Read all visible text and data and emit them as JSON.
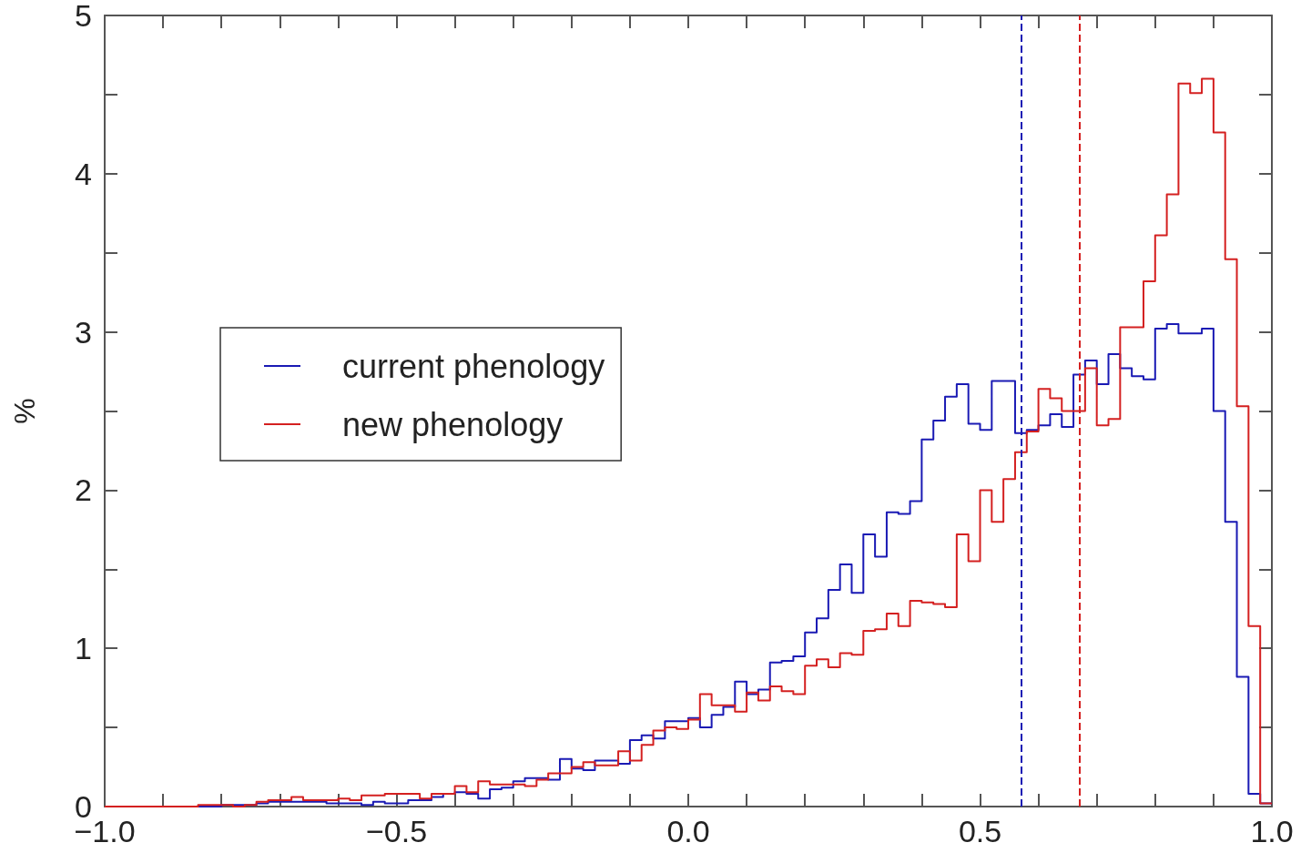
{
  "chart_data": {
    "type": "histogram",
    "ylabel": "%",
    "bins": [
      -1.0,
      -0.98,
      -0.96,
      -0.94,
      -0.92,
      -0.9,
      -0.88,
      -0.86,
      -0.84,
      -0.82,
      -0.8,
      -0.78,
      -0.76,
      -0.74,
      -0.72,
      -0.7,
      -0.68,
      -0.66,
      -0.64,
      -0.62,
      -0.6,
      -0.58,
      -0.56,
      -0.54,
      -0.52,
      -0.5,
      -0.48,
      -0.46,
      -0.44,
      -0.42,
      -0.4,
      -0.38,
      -0.36,
      -0.34,
      -0.32,
      -0.3,
      -0.28,
      -0.26,
      -0.24,
      -0.22,
      -0.2,
      -0.18,
      -0.16,
      -0.14,
      -0.12,
      -0.1,
      -0.08,
      -0.06,
      -0.04,
      -0.02,
      0.0,
      0.02,
      0.04,
      0.06,
      0.08,
      0.1,
      0.12,
      0.14,
      0.16,
      0.18,
      0.2,
      0.22,
      0.24,
      0.26,
      0.28,
      0.3,
      0.32,
      0.34,
      0.36,
      0.38,
      0.4,
      0.42,
      0.44,
      0.46,
      0.48,
      0.5,
      0.52,
      0.54,
      0.56,
      0.58,
      0.6,
      0.62,
      0.64,
      0.66,
      0.68,
      0.7,
      0.72,
      0.74,
      0.76,
      0.78,
      0.8,
      0.82,
      0.84,
      0.86,
      0.88,
      0.9,
      0.92,
      0.94,
      0.96,
      0.98,
      1.0
    ],
    "series": [
      {
        "name": "current phenology",
        "color": "#1a1ab4",
        "values": [
          0,
          0,
          0,
          0,
          0,
          0,
          0,
          0,
          0,
          0,
          0.01,
          0.01,
          0.01,
          0.02,
          0.03,
          0.03,
          0.03,
          0.03,
          0.03,
          0.02,
          0.02,
          0.02,
          0.01,
          0.03,
          0.02,
          0.02,
          0.04,
          0.04,
          0.06,
          0.08,
          0.09,
          0.08,
          0.05,
          0.11,
          0.12,
          0.16,
          0.18,
          0.18,
          0.17,
          0.3,
          0.24,
          0.23,
          0.29,
          0.29,
          0.27,
          0.42,
          0.45,
          0.43,
          0.54,
          0.54,
          0.56,
          0.5,
          0.58,
          0.63,
          0.79,
          0.71,
          0.74,
          0.91,
          0.92,
          0.95,
          1.1,
          1.19,
          1.37,
          1.53,
          1.35,
          1.72,
          1.58,
          1.86,
          1.85,
          1.93,
          2.32,
          2.44,
          2.59,
          2.67,
          2.42,
          2.38,
          2.69,
          2.69,
          2.36,
          2.38,
          2.41,
          2.48,
          2.4,
          2.73,
          2.82,
          2.67,
          2.86,
          2.77,
          2.72,
          2.7,
          3.02,
          3.05,
          2.99,
          2.99,
          3.02,
          2.5,
          1.8,
          0.82,
          0.08,
          0.02
        ]
      },
      {
        "name": "new phenology",
        "color": "#d42020",
        "values": [
          0,
          0,
          0,
          0,
          0,
          0,
          0,
          0,
          0.01,
          0.01,
          0.01,
          0,
          0.01,
          0.03,
          0.04,
          0.04,
          0.06,
          0.04,
          0.04,
          0.04,
          0.05,
          0.04,
          0.07,
          0.07,
          0.08,
          0.08,
          0.08,
          0.05,
          0.08,
          0.08,
          0.13,
          0.09,
          0.16,
          0.14,
          0.14,
          0.14,
          0.13,
          0.17,
          0.21,
          0.21,
          0.25,
          0.28,
          0.26,
          0.26,
          0.35,
          0.29,
          0.39,
          0.48,
          0.5,
          0.49,
          0.55,
          0.71,
          0.64,
          0.64,
          0.6,
          0.72,
          0.67,
          0.76,
          0.73,
          0.71,
          0.89,
          0.93,
          0.88,
          0.97,
          0.96,
          1.11,
          1.12,
          1.22,
          1.14,
          1.3,
          1.29,
          1.28,
          1.26,
          1.72,
          1.55,
          2.0,
          1.8,
          2.07,
          2.24,
          2.37,
          2.64,
          2.58,
          2.5,
          2.5,
          2.77,
          2.41,
          2.45,
          3.03,
          3.03,
          3.32,
          3.61,
          3.87,
          4.57,
          4.51,
          4.6,
          4.26,
          3.46,
          2.53,
          1.14,
          0.02
        ]
      }
    ],
    "xlim": [
      -1,
      1
    ],
    "xticks": [
      {
        "value": -1,
        "label": "−1.0"
      },
      {
        "value": -0.9,
        "label": null
      },
      {
        "value": -0.8,
        "label": null
      },
      {
        "value": -0.7,
        "label": null
      },
      {
        "value": -0.6,
        "label": null
      },
      {
        "value": -0.5,
        "label": "−0.5"
      },
      {
        "value": -0.4,
        "label": null
      },
      {
        "value": -0.3,
        "label": null
      },
      {
        "value": -0.2,
        "label": null
      },
      {
        "value": -0.1,
        "label": null
      },
      {
        "value": 0,
        "label": "0.0"
      },
      {
        "value": 0.1,
        "label": null
      },
      {
        "value": 0.2,
        "label": null
      },
      {
        "value": 0.3,
        "label": null
      },
      {
        "value": 0.4,
        "label": null
      },
      {
        "value": 0.5,
        "label": "0.5"
      },
      {
        "value": 0.6,
        "label": null
      },
      {
        "value": 0.7,
        "label": null
      },
      {
        "value": 0.8,
        "label": null
      },
      {
        "value": 0.9,
        "label": null
      },
      {
        "value": 1,
        "label": "1.0"
      }
    ],
    "ylim": [
      0,
      5
    ],
    "yticks": [
      0,
      {
        "value": 0.5,
        "label": null
      },
      1,
      {
        "value": 1.5,
        "label": null
      },
      2,
      {
        "value": 2.5,
        "label": null
      },
      3,
      {
        "value": 3.5,
        "label": null
      },
      4,
      {
        "value": 4.5,
        "label": null
      },
      5
    ],
    "ref_lines": [
      {
        "axis": "x",
        "value": 0.57,
        "color": "#1a1ab4",
        "line_style": "dashed"
      },
      {
        "axis": "x",
        "value": 0.67,
        "color": "#d42020",
        "line_style": "dashed"
      }
    ],
    "grid": false,
    "legend": "left",
    "line_style": "solid",
    "marker": "none"
  }
}
